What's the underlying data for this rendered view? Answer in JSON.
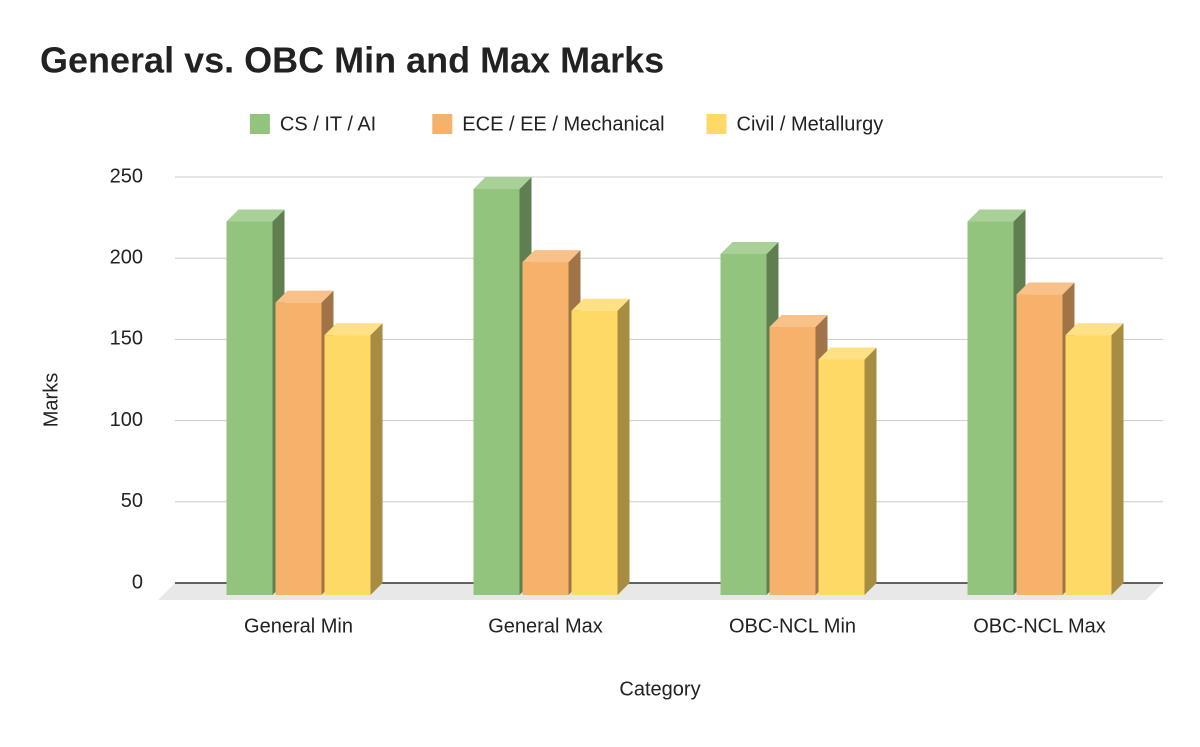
{
  "chart_data": {
    "type": "bar3d",
    "title": "General vs. OBC Min and Max Marks",
    "x_label": "Category",
    "y_label": "Marks",
    "categories": [
      "General Min",
      "General Max",
      "OBC-NCL Min",
      "OBC-NCL Max"
    ],
    "series": [
      {
        "name": "CS / IT / AI",
        "color": "#93c47d",
        "values": [
          230,
          250,
          210,
          230
        ]
      },
      {
        "name": "ECE / EE / Mechanical",
        "color": "#f6b26b",
        "values": [
          180,
          205,
          165,
          185
        ]
      },
      {
        "name": "Civil / Metallurgy",
        "color": "#ffd966",
        "values": [
          160,
          175,
          145,
          160
        ]
      }
    ],
    "ylim": [
      0,
      250
    ],
    "yticks": [
      0,
      50,
      100,
      150,
      200,
      250
    ],
    "grid": true
  }
}
